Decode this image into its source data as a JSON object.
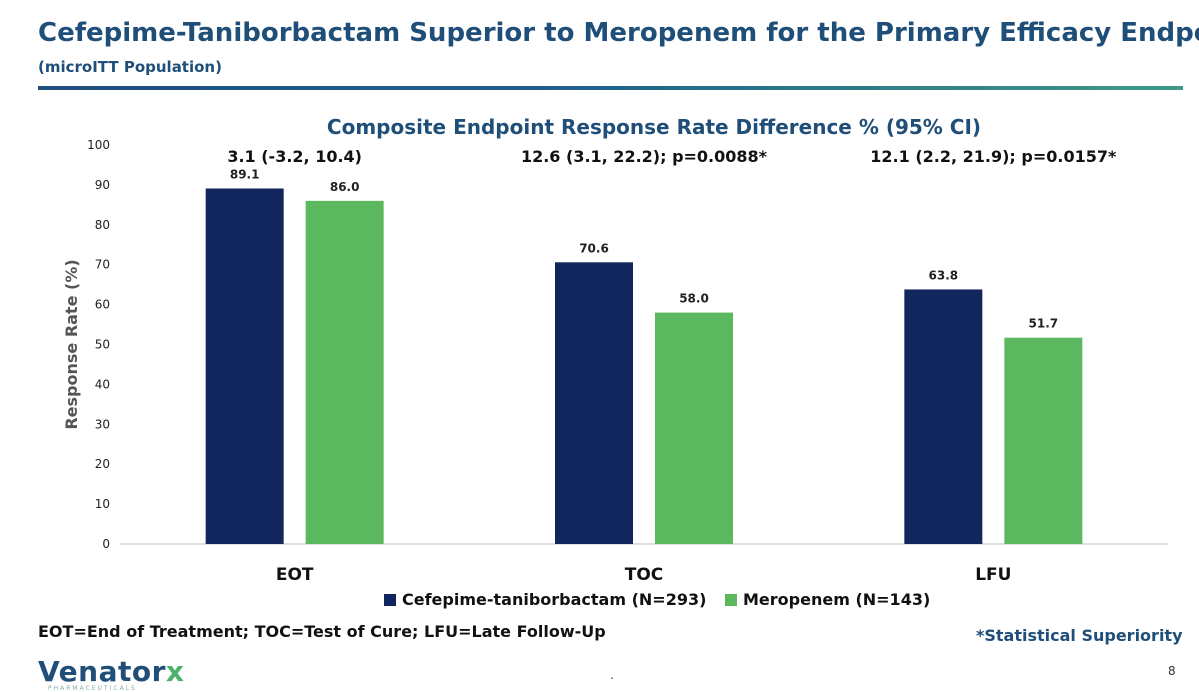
{
  "header": {
    "title": "Cefepime-Taniborbactam Superior to Meropenem for the Primary Efficacy Endpoint",
    "subtitle": "(microITT Population)"
  },
  "chart_data": {
    "type": "bar",
    "title": "Composite Endpoint Response Rate Difference % (95% CI)",
    "ylabel": "Response Rate (%)",
    "xlabel": "",
    "ylim": [
      0,
      100
    ],
    "yticks": [
      0,
      10,
      20,
      30,
      40,
      50,
      60,
      70,
      80,
      90,
      100
    ],
    "grid": false,
    "legend_position": "bottom",
    "categories": [
      "EOT",
      "TOC",
      "LFU"
    ],
    "group_annotations": [
      "3.1 (-3.2, 10.4)",
      "12.6 (3.1, 22.2); p=0.0088*",
      "12.1 (2.2, 21.9); p=0.0157*"
    ],
    "series": [
      {
        "name": "Cefepime-taniborbactam (N=293)",
        "color": "#12265e",
        "values": [
          89.1,
          70.6,
          63.8
        ]
      },
      {
        "name": "Meropenem (N=143)",
        "color": "#5cb85f",
        "values": [
          86.0,
          58.0,
          51.7
        ]
      }
    ]
  },
  "footer": {
    "abbreviations": "EOT=End of Treatment; TOC=Test of Cure; LFU=Late Follow-Up",
    "superiority_note": "*Statistical Superiority",
    "logo_main": "Venator",
    "logo_x": "x",
    "logo_sub": "PHARMACEUTICALS",
    "dot": ".",
    "page_number": "8"
  }
}
